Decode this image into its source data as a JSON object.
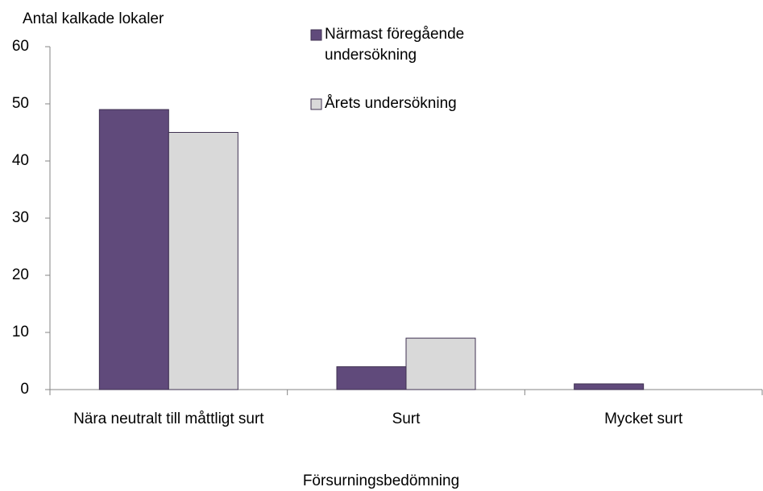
{
  "chart_data": {
    "type": "bar",
    "y_axis_label": "Antal kalkade lokaler",
    "x_axis_label": "Försurningsbedömning",
    "categories": [
      "Nära neutralt till måttligt surt",
      "Surt",
      "Mycket surt"
    ],
    "series": [
      {
        "name": "Närmast föregående undersökning",
        "color": "#604a7b",
        "values": [
          49,
          4,
          1
        ]
      },
      {
        "name": "Årets undersökning",
        "color": "#d9d9d9",
        "values": [
          45,
          9,
          0
        ]
      }
    ],
    "ylim": [
      0,
      60
    ],
    "yticks": [
      0,
      10,
      20,
      30,
      40,
      50,
      60
    ],
    "grid": false
  }
}
